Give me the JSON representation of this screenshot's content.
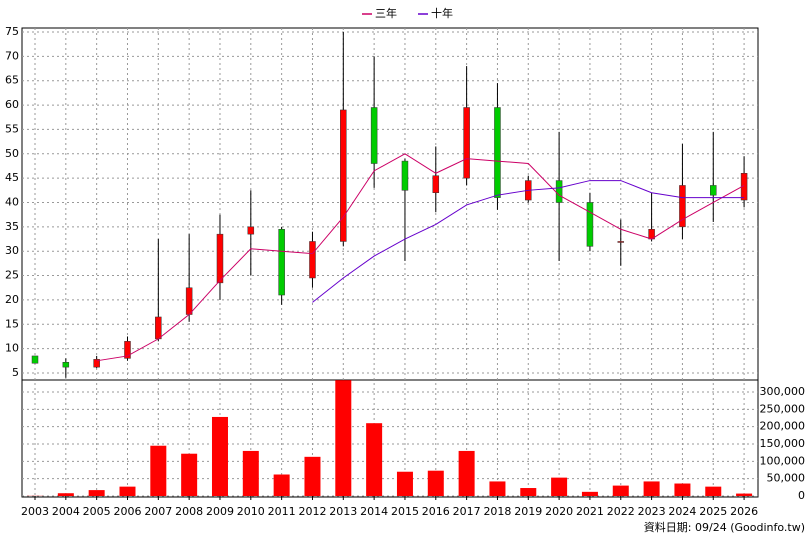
{
  "chart_data": {
    "type": "candlestick",
    "categories": [
      "2003",
      "2004",
      "2005",
      "2006",
      "2007",
      "2008",
      "2009",
      "2010",
      "2011",
      "2012",
      "2013",
      "2014",
      "2015",
      "2016",
      "2017",
      "2018",
      "2019",
      "2020",
      "2021",
      "2022",
      "2023",
      "2024",
      "2025",
      "2026"
    ],
    "open": [
      8.5,
      7.2,
      6.2,
      8,
      12,
      17,
      23.5,
      33.5,
      34.5,
      24.5,
      32,
      59.5,
      48.5,
      42,
      45,
      59.5,
      40.5,
      44.5,
      40,
      31.8,
      32.5,
      35,
      43.5,
      40.5
    ],
    "high": [
      8.5,
      8,
      8.5,
      12.5,
      32.5,
      33.5,
      37.5,
      42.5,
      35,
      34,
      75,
      70,
      49,
      51.5,
      68,
      64.5,
      45.5,
      54.5,
      42,
      36.5,
      42,
      52,
      54.5,
      49.5
    ],
    "low": [
      7,
      4,
      6,
      7.5,
      11.5,
      15.5,
      20,
      25,
      19,
      22.5,
      31,
      43,
      28,
      38,
      43.5,
      38.5,
      40,
      28,
      30,
      27,
      32,
      32.5,
      36,
      39
    ],
    "close": [
      7,
      6.2,
      7.8,
      11.5,
      16.5,
      22.5,
      33.5,
      35,
      21,
      32,
      59,
      48,
      42.5,
      45.5,
      59.5,
      41,
      44.5,
      40,
      31,
      32,
      34.5,
      43.5,
      41.5,
      46
    ],
    "up_color": "#ff0000",
    "down_color": "#00cc00",
    "ylim": [
      3.56,
      75.82
    ],
    "yticks": [
      5,
      10,
      15,
      20,
      25,
      30,
      35,
      40,
      45,
      50,
      55,
      60,
      65,
      70,
      75
    ],
    "grid": true,
    "series": [
      {
        "name": "三年",
        "color": "#cc0066",
        "values": [
          null,
          null,
          7.5,
          8.5,
          12,
          17,
          24,
          30.5,
          30,
          29.5,
          37,
          46.5,
          50,
          46,
          49,
          48.5,
          48,
          41.5,
          38,
          34.5,
          32.5,
          36.5,
          40,
          43.5
        ]
      },
      {
        "name": "十年",
        "color": "#6600cc",
        "values": [
          null,
          null,
          null,
          null,
          null,
          null,
          null,
          null,
          null,
          19.5,
          24.5,
          29,
          32.5,
          35.5,
          39.5,
          41.5,
          42.5,
          43,
          44.5,
          44.5,
          42,
          41,
          41,
          41
        ]
      }
    ],
    "volume": {
      "type": "bar",
      "color": "#ff0000",
      "values": [
        500,
        8000,
        17000,
        27000,
        145000,
        122000,
        228000,
        130000,
        62000,
        113000,
        334000,
        210000,
        70000,
        73000,
        130000,
        42000,
        23000,
        53000,
        12000,
        30000,
        42000,
        36000,
        27000,
        7000
      ],
      "ylim": [
        0,
        334600
      ],
      "yticks": [
        0,
        {
          "value": 50000,
          "label": "50,000"
        },
        {
          "value": 100000,
          "label": "100,000"
        },
        {
          "value": 150000,
          "label": "150,000"
        },
        {
          "value": 200000,
          "label": "200,000"
        },
        {
          "value": 250000,
          "label": "250,000"
        },
        {
          "value": 300000,
          "label": "300,000"
        }
      ]
    },
    "source": "資料日期: 09/24 (Goodinfo.tw)"
  }
}
